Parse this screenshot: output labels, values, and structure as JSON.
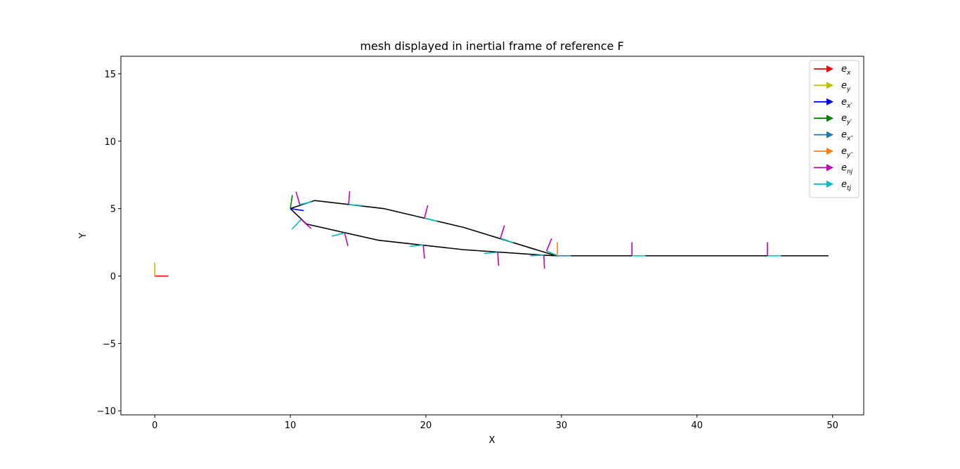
{
  "chart_data": {
    "type": "line",
    "title": "mesh displayed in inertial frame of reference F",
    "xlabel": "X",
    "ylabel": "Y",
    "xlim": [
      -2.5,
      52.3
    ],
    "ylim": [
      -10.3,
      16.3
    ],
    "xticks": [
      0,
      10,
      20,
      30,
      40,
      50
    ],
    "yticks": [
      -10,
      -5,
      0,
      5,
      10,
      15
    ],
    "ytick_labels": [
      "−10",
      "−5",
      "0",
      "5",
      "10",
      "15"
    ],
    "grid": false,
    "legend_placement": "top-right",
    "legend": [
      {
        "base": "e",
        "sub": "x",
        "color": "#ff0000"
      },
      {
        "base": "e",
        "sub": "y",
        "color": "#bfbf00"
      },
      {
        "base": "e",
        "sub": "x′",
        "color": "#0000ff"
      },
      {
        "base": "e",
        "sub": "y′",
        "color": "#008000"
      },
      {
        "base": "e",
        "sub": "x″",
        "color": "#1f77b4"
      },
      {
        "base": "e",
        "sub": "y″",
        "color": "#ff7f0e"
      },
      {
        "base": "e",
        "sub": "nj",
        "color": "#bf00bf"
      },
      {
        "base": "e",
        "sub": "tj",
        "color": "#00bfbf"
      }
    ],
    "mesh_outline": {
      "color": "#000000",
      "x": [
        10.0,
        11.8,
        16.9,
        22.8,
        29.6,
        49.7,
        29.6,
        28.6,
        22.8,
        16.5,
        11.2,
        10.0
      ],
      "y": [
        5.0,
        5.6,
        5.0,
        3.6,
        1.5,
        1.5,
        1.5,
        1.55,
        1.95,
        2.65,
        3.85,
        5.0
      ]
    },
    "frames": [
      {
        "name": "F",
        "origin": [
          0,
          0
        ],
        "e1": [
          1.0,
          0.0
        ],
        "e2": [
          0.0,
          1.0
        ],
        "color1": "#ff0000",
        "color2": "#bfbf00"
      },
      {
        "name": "F-prime",
        "origin": [
          10.0,
          5.0
        ],
        "e1": [
          1.0,
          -0.15
        ],
        "e2": [
          0.15,
          1.0
        ],
        "color1": "#0000ff",
        "color2": "#008000"
      },
      {
        "name": "F-second",
        "origin": [
          29.7,
          1.5
        ],
        "e1": [
          1.0,
          0.0
        ],
        "e2": [
          0.0,
          1.0
        ],
        "color1": "#1f77b4",
        "color2": "#ff7f0e"
      }
    ],
    "panel_vectors": [
      {
        "p": [
          10.7,
          5.3
        ],
        "t": [
          0.9,
          0.2
        ],
        "n": [
          -0.28,
          0.95
        ]
      },
      {
        "p": [
          14.3,
          5.3
        ],
        "t": [
          1.0,
          -0.08
        ],
        "n": [
          0.08,
          1.0
        ]
      },
      {
        "p": [
          19.9,
          4.3
        ],
        "t": [
          0.95,
          -0.24
        ],
        "n": [
          0.24,
          0.95
        ]
      },
      {
        "p": [
          25.5,
          2.8
        ],
        "t": [
          0.95,
          -0.32
        ],
        "n": [
          0.3,
          0.95
        ]
      },
      {
        "p": [
          28.9,
          1.85
        ],
        "t": [
          0.92,
          -0.38
        ],
        "n": [
          0.38,
          0.93
        ]
      },
      {
        "p": [
          35.2,
          1.5
        ],
        "t": [
          1.0,
          0.0
        ],
        "n": [
          0.0,
          1.0
        ]
      },
      {
        "p": [
          45.2,
          1.5
        ],
        "t": [
          1.0,
          0.0
        ],
        "n": [
          0.0,
          1.0
        ]
      },
      {
        "p": [
          28.7,
          1.55
        ],
        "t": [
          -1.0,
          -0.05
        ],
        "n": [
          0.05,
          -1.0
        ]
      },
      {
        "p": [
          25.3,
          1.75
        ],
        "t": [
          -1.0,
          -0.07
        ],
        "n": [
          0.07,
          -1.0
        ]
      },
      {
        "p": [
          19.8,
          2.3
        ],
        "t": [
          -0.98,
          -0.1
        ],
        "n": [
          0.1,
          -1.0
        ]
      },
      {
        "p": [
          14.0,
          3.2
        ],
        "t": [
          -0.94,
          -0.25
        ],
        "n": [
          0.25,
          -0.97
        ]
      },
      {
        "p": [
          10.8,
          4.2
        ],
        "t": [
          -0.68,
          -0.73
        ],
        "n": [
          0.73,
          -0.68
        ]
      }
    ]
  }
}
